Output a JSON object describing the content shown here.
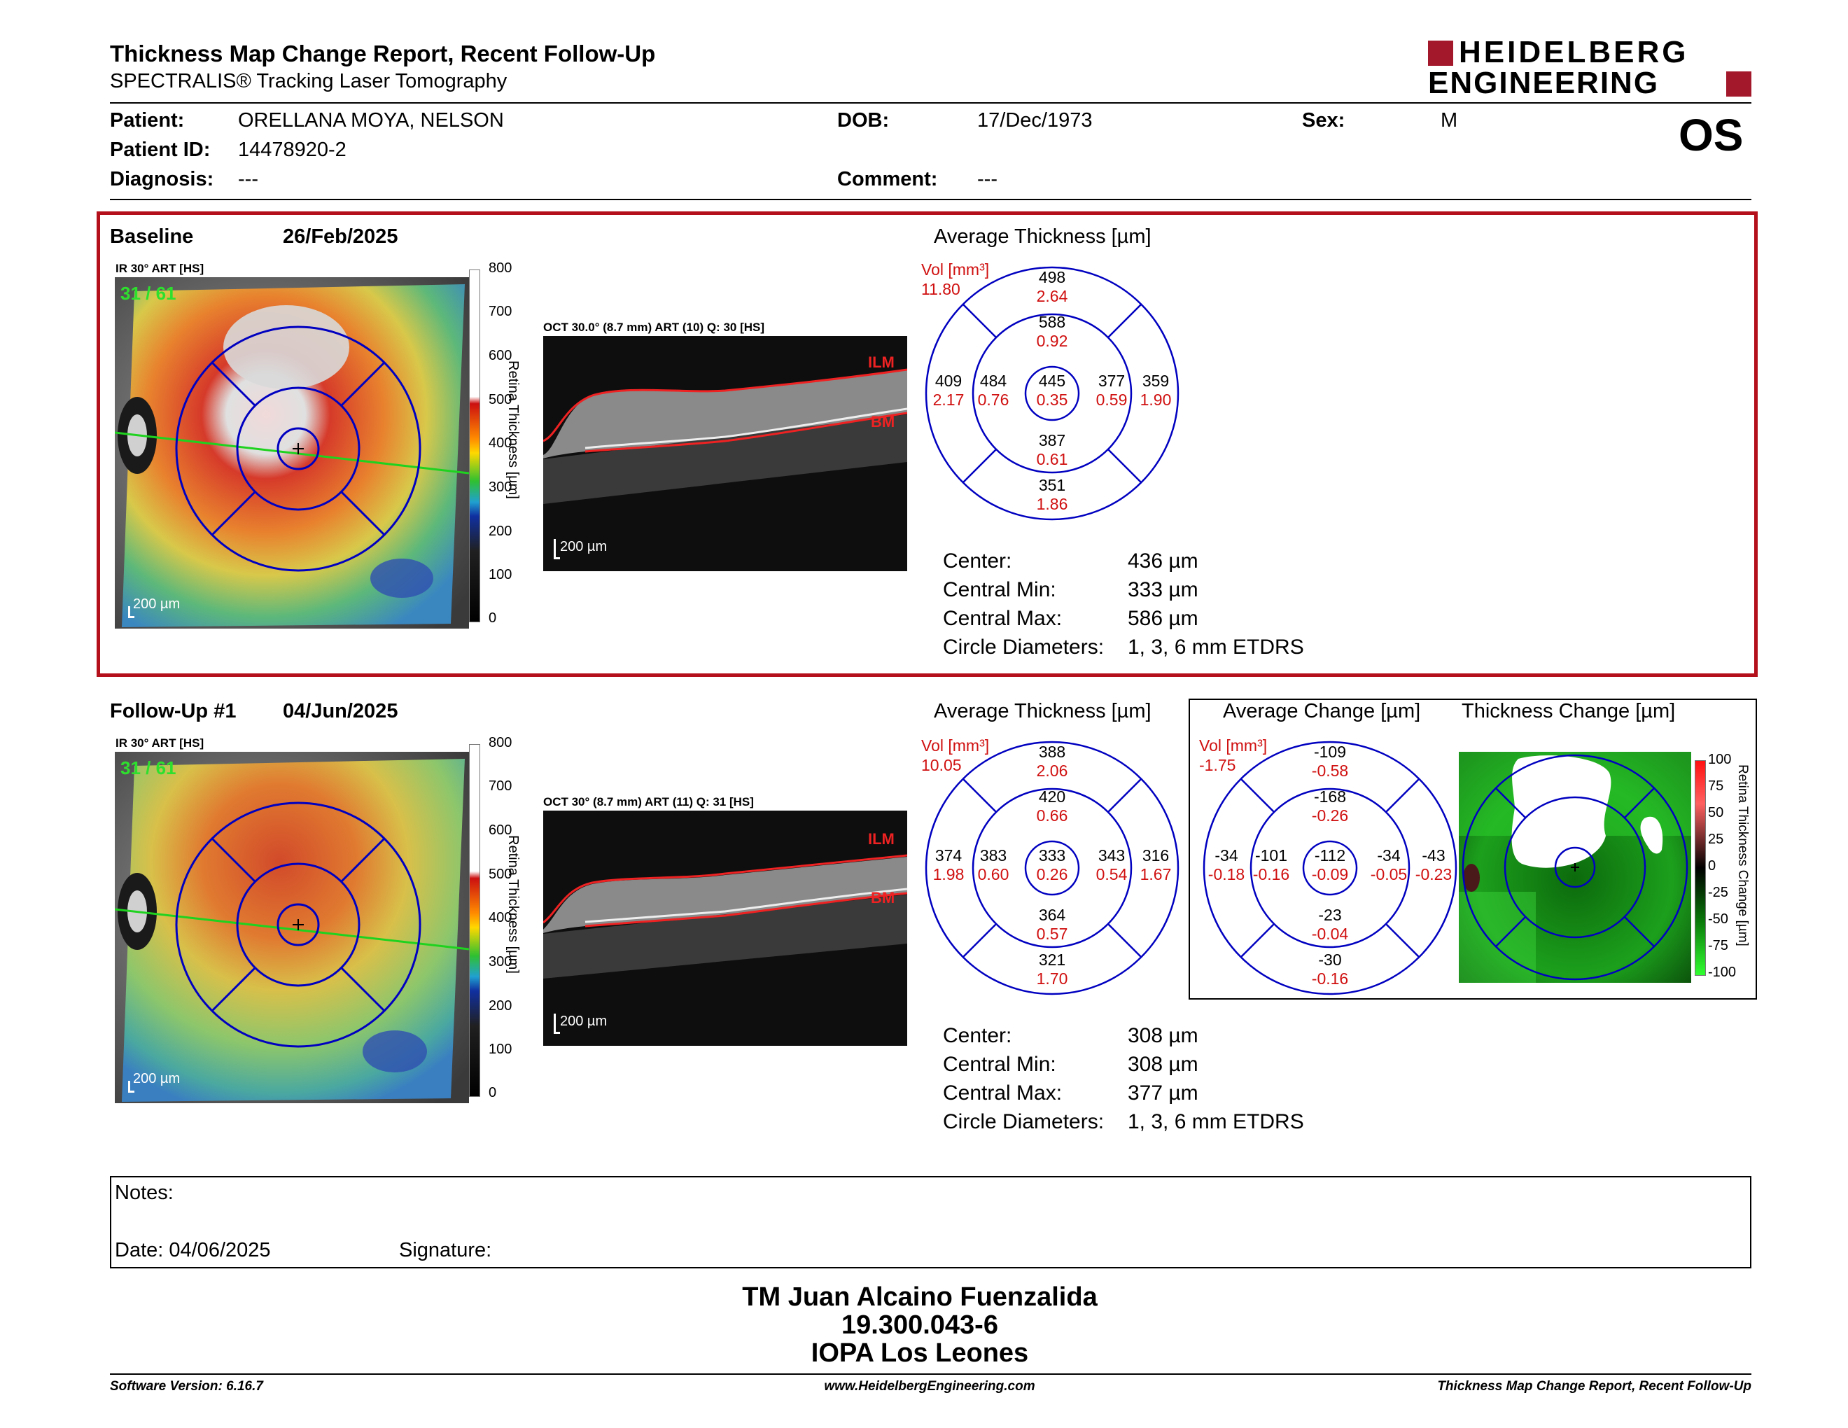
{
  "header": {
    "title": "Thickness Map Change Report, Recent Follow-Up",
    "subtitle": "SPECTRALIS® Tracking Laser Tomography",
    "brand_line1": "HEIDELBERG",
    "brand_line2": "ENGINEERING",
    "eye": "OS"
  },
  "patient": {
    "patient_label": "Patient:",
    "patient_value": "ORELLANA MOYA, NELSON",
    "id_label": "Patient ID:",
    "id_value": "14478920-2",
    "diag_label": "Diagnosis:",
    "diag_value": "---",
    "dob_label": "DOB:",
    "dob_value": "17/Dec/1973",
    "comment_label": "Comment:",
    "comment_value": "---",
    "sex_label": "Sex:",
    "sex_value": "M"
  },
  "common": {
    "ir_label": "IR 30° ART [HS]",
    "ir_counter": "31 / 61",
    "scale_bar": "200 µm",
    "colorbar_title": "Retina Thickness [µm]",
    "colorbar_ticks": [
      "800",
      "700",
      "600",
      "500",
      "400",
      "300",
      "200",
      "100",
      "0"
    ],
    "ilm": "ILM",
    "bm": "BM",
    "avg_thickness_title": "Average Thickness [µm]",
    "vol_label": "Vol [mm³]",
    "center_label": "Center:",
    "min_label": "Central Min:",
    "max_label": "Central Max:",
    "diam_label": "Circle Diameters:",
    "diam_value": "1, 3, 6 mm ETDRS"
  },
  "baseline": {
    "title": "Baseline",
    "date": "26/Feb/2025",
    "oct_label": "OCT 30.0° (8.7 mm) ART (10) Q: 30 [HS]",
    "vol_value": "11.80",
    "grid": {
      "outer_sup": {
        "t": "498",
        "v": "2.64"
      },
      "inner_sup": {
        "t": "588",
        "v": "0.92"
      },
      "outer_temp": {
        "t": "409",
        "v": "2.17"
      },
      "inner_temp": {
        "t": "484",
        "v": "0.76"
      },
      "center": {
        "t": "445",
        "v": "0.35"
      },
      "inner_nas": {
        "t": "377",
        "v": "0.59"
      },
      "outer_nas": {
        "t": "359",
        "v": "1.90"
      },
      "inner_inf": {
        "t": "387",
        "v": "0.61"
      },
      "outer_inf": {
        "t": "351",
        "v": "1.86"
      }
    },
    "center_value": "436 µm",
    "min_value": "333 µm",
    "max_value": "586 µm"
  },
  "followup": {
    "title": "Follow-Up #1",
    "date": "04/Jun/2025",
    "oct_label": "OCT 30° (8.7 mm) ART (11) Q: 31 [HS]",
    "vol_value": "10.05",
    "grid": {
      "outer_sup": {
        "t": "388",
        "v": "2.06"
      },
      "inner_sup": {
        "t": "420",
        "v": "0.66"
      },
      "outer_temp": {
        "t": "374",
        "v": "1.98"
      },
      "inner_temp": {
        "t": "383",
        "v": "0.60"
      },
      "center": {
        "t": "333",
        "v": "0.26"
      },
      "inner_nas": {
        "t": "343",
        "v": "0.54"
      },
      "outer_nas": {
        "t": "316",
        "v": "1.67"
      },
      "inner_inf": {
        "t": "364",
        "v": "0.57"
      },
      "outer_inf": {
        "t": "321",
        "v": "1.70"
      }
    },
    "center_value": "308 µm",
    "min_value": "308 µm",
    "max_value": "377 µm"
  },
  "change": {
    "avg_change_title": "Average Change [µm]",
    "thickness_change_title": "Thickness Change [µm]",
    "vol_value": "-1.75",
    "grid": {
      "outer_sup": {
        "t": "-109",
        "v": "-0.58"
      },
      "inner_sup": {
        "t": "-168",
        "v": "-0.26"
      },
      "outer_temp": {
        "t": "-34",
        "v": "-0.18"
      },
      "inner_temp": {
        "t": "-101",
        "v": "-0.16"
      },
      "center": {
        "t": "-112",
        "v": "-0.09"
      },
      "inner_nas": {
        "t": "-34",
        "v": "-0.05"
      },
      "outer_nas": {
        "t": "-43",
        "v": "-0.23"
      },
      "inner_inf": {
        "t": "-23",
        "v": "-0.04"
      },
      "outer_inf": {
        "t": "-30",
        "v": "-0.16"
      }
    },
    "colorbar_title": "Retina Thickness Change [µm]",
    "colorbar_ticks": [
      "100",
      "75",
      "50",
      "25",
      "0",
      "-25",
      "-50",
      "-75",
      "-100"
    ]
  },
  "notes": {
    "notes_label": "Notes:",
    "date_label": "Date: 04/06/2025",
    "signature_label": "Signature:"
  },
  "signer": {
    "name": "TM Juan Alcaino Fuenzalida",
    "rut": "19.300.043-6",
    "place": "IOPA Los Leones"
  },
  "footer": {
    "software": "Software Version: 6.16.7",
    "website": "www.HeidelbergEngineering.com",
    "report": "Thickness Map Change Report, Recent Follow-Up"
  },
  "colors": {
    "frame_red": "#b3101c",
    "grid_blue": "#0000c0",
    "vol_red": "#d01010",
    "brand_red": "#a3182b"
  }
}
